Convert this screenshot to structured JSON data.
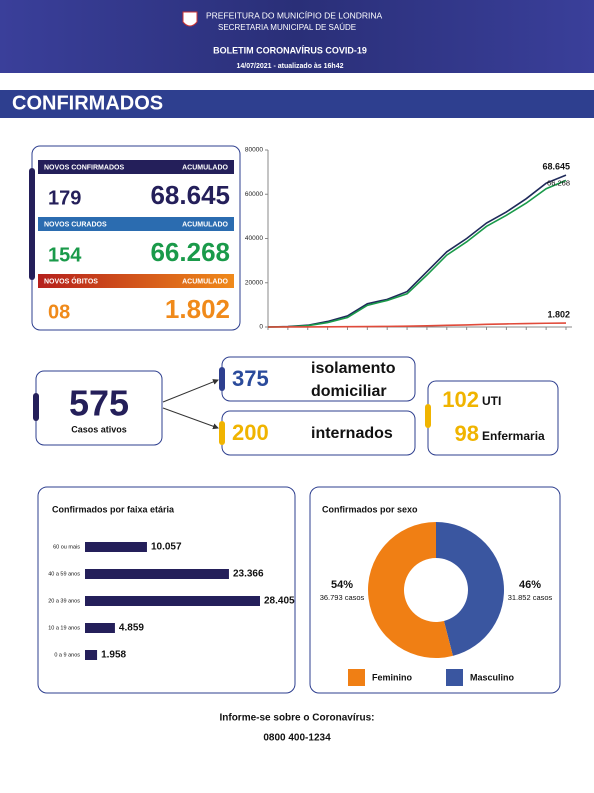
{
  "header": {
    "org1": "PREFEITURA DO MUNICÍPIO DE LONDRINA",
    "org2": "SECRETARIA MUNICIPAL DE SAÚDE",
    "title": "BOLETIM CORONAVÍRUS COVID-19",
    "date": "14/07/2021 - atualizado às 16h42"
  },
  "section": "CONFIRMADOS",
  "stats": [
    {
      "label": "NOVOS CONFIRMADOS",
      "acc_label": "ACUMULADO",
      "new": "179",
      "total": "68.645"
    },
    {
      "label": "NOVOS CURADOS",
      "acc_label": "ACUMULADO",
      "new": "154",
      "total": "66.268"
    },
    {
      "label": "NOVOS ÓBITOS",
      "acc_label": "ACUMULADO",
      "new": "08",
      "total": "1.802"
    }
  ],
  "active": {
    "total": "575",
    "total_label": "Casos ativos",
    "home": "375",
    "home_label1": "isolamento",
    "home_label2": "domiciliar",
    "hosp": "200",
    "hosp_label": "internados",
    "icu": "102",
    "icu_label": "UTI",
    "ward": "98",
    "ward_label": "Enfermaria"
  },
  "footer": {
    "line1": "Informe-se sobre o Coronavírus:",
    "line2": "0800 400-1234"
  },
  "chart_data": [
    {
      "type": "line",
      "categories": [
        null,
        null,
        null,
        null,
        null,
        null,
        null,
        null,
        null,
        null,
        null,
        null,
        null,
        null,
        null,
        null
      ],
      "ylim": [
        0,
        80000
      ],
      "yticks": [
        0,
        20000,
        40000,
        60000,
        80000
      ],
      "series": [
        {
          "name": "Confirmados",
          "color": "#1f2a5a",
          "end_label": "68.645",
          "values": [
            0,
            200,
            800,
            2500,
            5000,
            10500,
            12500,
            16000,
            25000,
            34000,
            40000,
            47000,
            52000,
            58000,
            65000,
            68645
          ]
        },
        {
          "name": "Curados",
          "color": "#1a9a4a",
          "end_label": "66.268",
          "values": [
            0,
            100,
            600,
            2000,
            4300,
            9800,
            12000,
            15000,
            23500,
            32500,
            38500,
            45500,
            50500,
            56000,
            62500,
            66268
          ]
        },
        {
          "name": "Óbitos",
          "color": "#e04a3a",
          "end_label": "1.802",
          "values": [
            0,
            10,
            30,
            70,
            120,
            200,
            280,
            350,
            550,
            750,
            950,
            1200,
            1400,
            1550,
            1700,
            1802
          ]
        }
      ]
    },
    {
      "type": "bar",
      "title": "Confirmados por faixa etária",
      "color": "#241f5a",
      "categories": [
        "60 ou mais",
        "40 a 59 anos",
        "20 a 39 anos",
        "10 a 19 anos",
        "0 a 9 anos"
      ],
      "values": [
        10057,
        23366,
        28405,
        4859,
        1958
      ],
      "value_labels": [
        "10.057",
        "23.366",
        "28.405",
        "4.859",
        "1.958"
      ]
    },
    {
      "type": "pie",
      "title": "Confirmados por sexo",
      "categories": [
        "Feminino",
        "Masculino"
      ],
      "values": [
        54,
        46
      ],
      "value_labels": [
        "54%",
        "46%"
      ],
      "sub_labels": [
        "36.793 casos",
        "31.852 casos"
      ],
      "colors": [
        "#f07f14",
        "#3a56a0"
      ]
    }
  ]
}
